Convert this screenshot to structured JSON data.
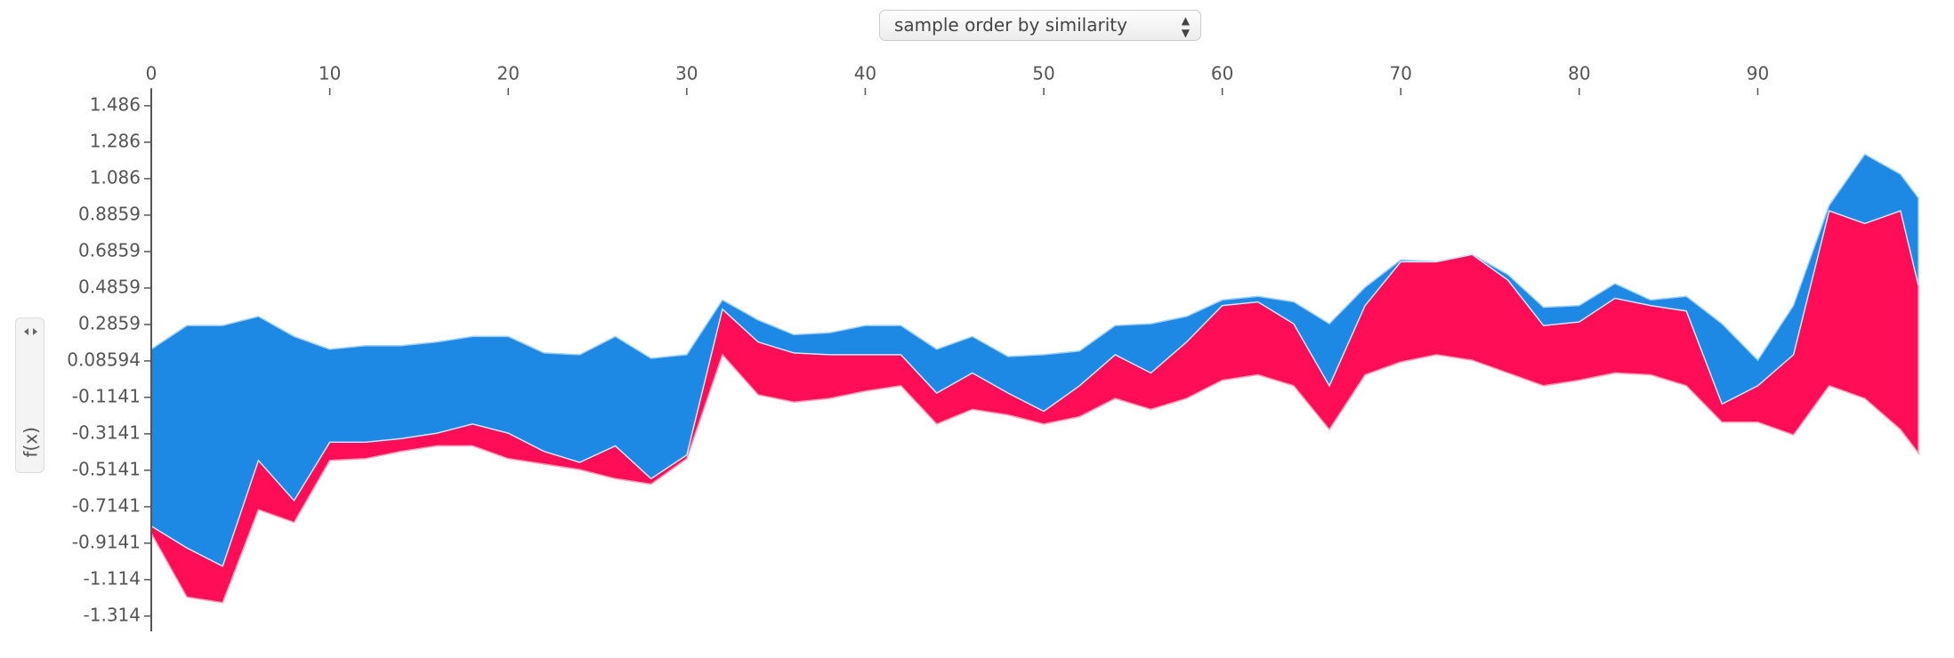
{
  "controls": {
    "order_select": "sample order by similarity"
  },
  "chart_data": {
    "type": "force",
    "ylabel": "f(x)",
    "x": [
      0,
      2,
      4,
      6,
      8,
      10,
      12,
      14,
      16,
      18,
      20,
      22,
      24,
      26,
      28,
      30,
      32,
      34,
      36,
      38,
      40,
      42,
      44,
      46,
      48,
      50,
      52,
      54,
      56,
      58,
      60,
      62,
      64,
      66,
      68,
      70,
      72,
      74,
      76,
      78,
      80,
      82,
      84,
      86,
      88,
      90,
      92,
      94,
      96,
      98,
      99
    ],
    "series": [
      {
        "color": "#ffffff",
        "values": [
          -0.82,
          -0.94,
          -1.04,
          -0.46,
          -0.68,
          -0.36,
          -0.36,
          -0.34,
          -0.31,
          -0.26,
          -0.31,
          -0.41,
          -0.47,
          -0.38,
          -0.56,
          -0.43,
          0.37,
          0.19,
          0.13,
          0.12,
          0.12,
          0.12,
          -0.09,
          0.02,
          -0.09,
          -0.19,
          -0.05,
          0.12,
          0.02,
          0.19,
          0.39,
          0.41,
          0.29,
          -0.05,
          0.39,
          0.63,
          0.63,
          0.67,
          0.53,
          0.28,
          0.3,
          0.43,
          0.39,
          0.36,
          -0.15,
          -0.05,
          0.12,
          0.91,
          0.84,
          0.91,
          0.5
        ]
      },
      {
        "color": "#ff0d57",
        "values": [
          0.04,
          0.27,
          0.2,
          0.27,
          0.12,
          0.1,
          0.09,
          0.07,
          0.07,
          0.12,
          0.14,
          0.07,
          0.04,
          0.18,
          0.03,
          0.02,
          0.25,
          0.29,
          0.27,
          0.24,
          0.2,
          0.17,
          0.17,
          0.2,
          0.12,
          0.07,
          0.17,
          0.24,
          0.2,
          0.31,
          0.41,
          0.4,
          0.34,
          0.24,
          0.38,
          0.55,
          0.51,
          0.58,
          0.51,
          0.33,
          0.32,
          0.41,
          0.38,
          0.41,
          0.1,
          0.2,
          0.44,
          0.96,
          0.96,
          1.2,
          0.92
        ]
      },
      {
        "color": "#1e88e5",
        "values": [
          0.97,
          1.22,
          1.32,
          0.79,
          0.9,
          0.51,
          0.53,
          0.51,
          0.5,
          0.48,
          0.53,
          0.54,
          0.59,
          0.6,
          0.66,
          0.55,
          0.05,
          0.12,
          0.1,
          0.12,
          0.16,
          0.16,
          0.24,
          0.2,
          0.2,
          0.31,
          0.19,
          0.16,
          0.27,
          0.14,
          0.03,
          0.03,
          0.12,
          0.34,
          0.1,
          0.01,
          0,
          0,
          0.03,
          0.1,
          0.09,
          0.08,
          0.03,
          0.08,
          0.44,
          0.14,
          0.27,
          0.03,
          0.38,
          0.2,
          0.48
        ]
      }
    ],
    "xlim": [
      0,
      99
    ],
    "xticks": [
      0,
      10,
      20,
      30,
      40,
      50,
      60,
      70,
      80,
      90
    ],
    "ylim": [
      -1.383,
      1.554
    ],
    "yticks": [
      1.486,
      1.286,
      1.086,
      0.8859,
      0.6859,
      0.4859,
      0.2859,
      0.08594,
      -0.1141,
      -0.3141,
      -0.5141,
      -0.7141,
      -0.9141,
      -1.114,
      -1.314
    ]
  }
}
